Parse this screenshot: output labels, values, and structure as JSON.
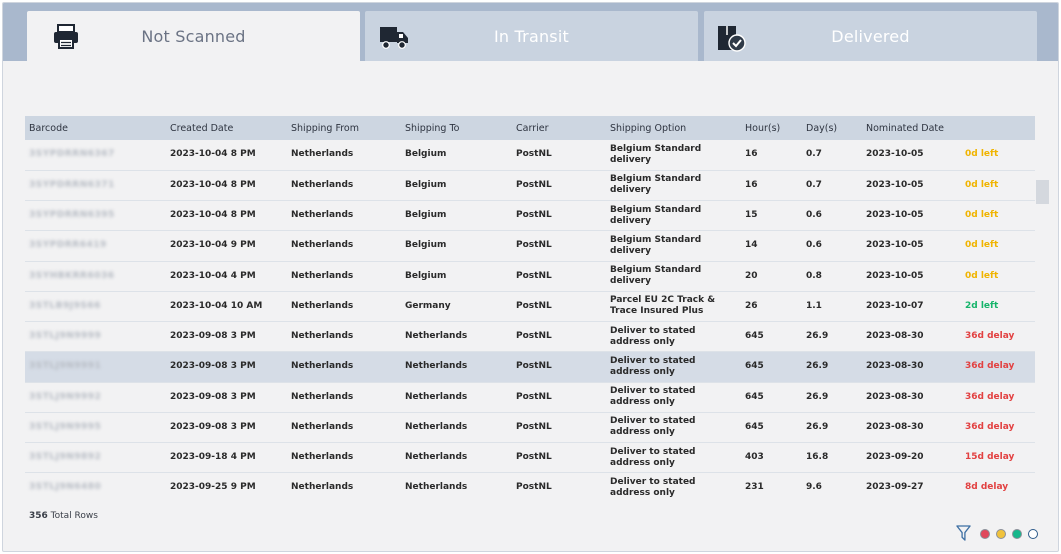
{
  "tabs": [
    {
      "label": "Not Scanned",
      "icon": "printer-icon",
      "active": true
    },
    {
      "label": "In Transit",
      "icon": "truck-icon",
      "active": false
    },
    {
      "label": "Delivered",
      "icon": "package-check-icon",
      "active": false
    }
  ],
  "table": {
    "columns": [
      "Barcode",
      "Created Date",
      "Shipping From",
      "Shipping To",
      "Carrier",
      "Shipping Option",
      "Hour(s)",
      "Day(s)",
      "Nominated Date",
      ""
    ],
    "rows": [
      {
        "barcode": "3SYPDRRN6367",
        "created": "2023-10-04 8 PM",
        "from": "Netherlands",
        "to": "Belgium",
        "carrier": "PostNL",
        "option": "Belgium Standard delivery",
        "hours": "16",
        "days": "0.7",
        "nominated": "2023-10-05",
        "status": "0d left",
        "status_color": "amber"
      },
      {
        "barcode": "3SYPDRRN6371",
        "created": "2023-10-04 8 PM",
        "from": "Netherlands",
        "to": "Belgium",
        "carrier": "PostNL",
        "option": "Belgium Standard delivery",
        "hours": "16",
        "days": "0.7",
        "nominated": "2023-10-05",
        "status": "0d left",
        "status_color": "amber"
      },
      {
        "barcode": "3SYPDRRN6395",
        "created": "2023-10-04 8 PM",
        "from": "Netherlands",
        "to": "Belgium",
        "carrier": "PostNL",
        "option": "Belgium Standard delivery",
        "hours": "15",
        "days": "0.6",
        "nominated": "2023-10-05",
        "status": "0d left",
        "status_color": "amber"
      },
      {
        "barcode": "3SYPDRR6419",
        "created": "2023-10-04 9 PM",
        "from": "Netherlands",
        "to": "Belgium",
        "carrier": "PostNL",
        "option": "Belgium Standard delivery",
        "hours": "14",
        "days": "0.6",
        "nominated": "2023-10-05",
        "status": "0d left",
        "status_color": "amber"
      },
      {
        "barcode": "3SYHBKRR6036",
        "created": "2023-10-04 4 PM",
        "from": "Netherlands",
        "to": "Belgium",
        "carrier": "PostNL",
        "option": "Belgium Standard delivery",
        "hours": "20",
        "days": "0.8",
        "nominated": "2023-10-05",
        "status": "0d left",
        "status_color": "amber"
      },
      {
        "barcode": "3STLB9J9S66",
        "created": "2023-10-04 10 AM",
        "from": "Netherlands",
        "to": "Germany",
        "carrier": "PostNL",
        "option": "Parcel EU 2C Track & Trace Insured Plus",
        "hours": "26",
        "days": "1.1",
        "nominated": "2023-10-07",
        "status": "2d left",
        "status_color": "green"
      },
      {
        "barcode": "3STLJ9N9999",
        "created": "2023-09-08 3 PM",
        "from": "Netherlands",
        "to": "Netherlands",
        "carrier": "PostNL",
        "option": "Deliver to stated address only",
        "hours": "645",
        "days": "26.9",
        "nominated": "2023-08-30",
        "status": "36d delay",
        "status_color": "red"
      },
      {
        "barcode": "3STLJ9N9991",
        "created": "2023-09-08 3 PM",
        "from": "Netherlands",
        "to": "Netherlands",
        "carrier": "PostNL",
        "option": "Deliver to stated address only",
        "hours": "645",
        "days": "26.9",
        "nominated": "2023-08-30",
        "status": "36d delay",
        "status_color": "red",
        "highlight": true
      },
      {
        "barcode": "3STLJ9N9992",
        "created": "2023-09-08 3 PM",
        "from": "Netherlands",
        "to": "Netherlands",
        "carrier": "PostNL",
        "option": "Deliver to stated address only",
        "hours": "645",
        "days": "26.9",
        "nominated": "2023-08-30",
        "status": "36d delay",
        "status_color": "red"
      },
      {
        "barcode": "3STLJ9N9995",
        "created": "2023-09-08 3 PM",
        "from": "Netherlands",
        "to": "Netherlands",
        "carrier": "PostNL",
        "option": "Deliver to stated address only",
        "hours": "645",
        "days": "26.9",
        "nominated": "2023-08-30",
        "status": "36d delay",
        "status_color": "red"
      },
      {
        "barcode": "3STLJ9N9892",
        "created": "2023-09-18 4 PM",
        "from": "Netherlands",
        "to": "Netherlands",
        "carrier": "PostNL",
        "option": "Deliver to stated address only",
        "hours": "403",
        "days": "16.8",
        "nominated": "2023-09-20",
        "status": "15d delay",
        "status_color": "red"
      },
      {
        "barcode": "3STLJ9N6480",
        "created": "2023-09-25 9 PM",
        "from": "Netherlands",
        "to": "Netherlands",
        "carrier": "PostNL",
        "option": "Deliver to stated address only",
        "hours": "231",
        "days": "9.6",
        "nominated": "2023-09-27",
        "status": "8d delay",
        "status_color": "red"
      }
    ]
  },
  "footer": {
    "total_count": "356",
    "total_label": "Total Rows"
  },
  "legend": {
    "filter_icon": "filter-icon",
    "dots": [
      {
        "name": "red-status-dot",
        "color": "#e0495c"
      },
      {
        "name": "amber-status-dot",
        "color": "#f0c23c"
      },
      {
        "name": "green-status-dot",
        "color": "#17b78b"
      },
      {
        "name": "empty-status-dot",
        "color": "#ffffff"
      }
    ]
  },
  "colors": {
    "tab_bar": "#a9b8cd",
    "amber": "#f0b400",
    "green": "#16b46a",
    "red": "#e24141"
  }
}
